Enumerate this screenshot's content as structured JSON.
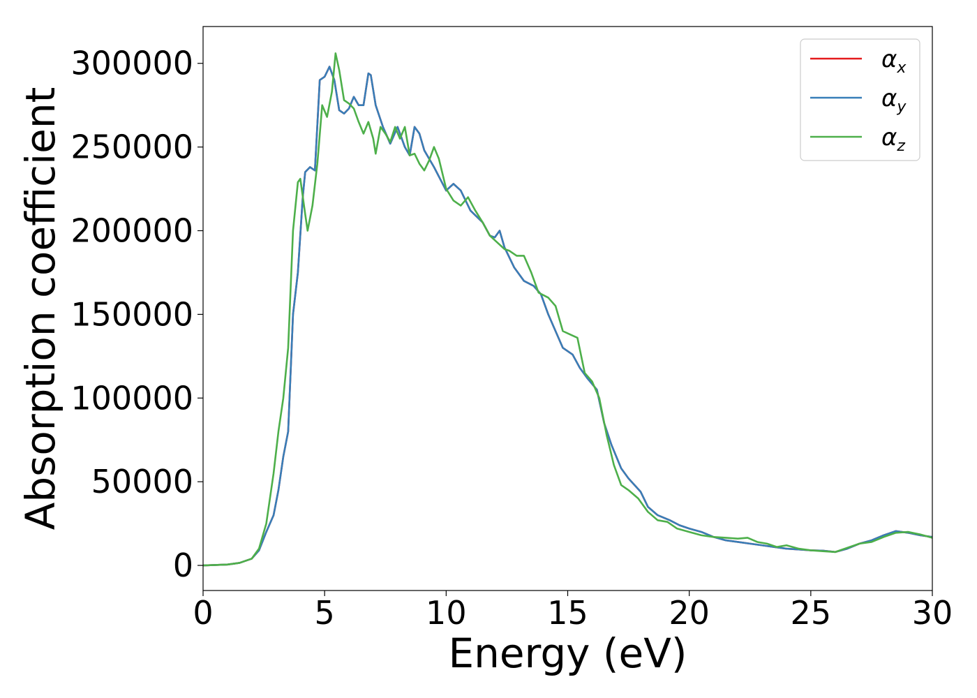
{
  "chart_data": {
    "type": "line",
    "xlabel": "Energy (eV)",
    "ylabel": "Absorption coefficient",
    "xlim": [
      0,
      30
    ],
    "ylim": [
      -15000,
      322000
    ],
    "xticks": [
      0,
      5,
      10,
      15,
      20,
      25,
      30
    ],
    "xtick_labels": [
      "0",
      "5",
      "10",
      "15",
      "20",
      "25",
      "30"
    ],
    "yticks": [
      0,
      50000,
      100000,
      150000,
      200000,
      250000,
      300000
    ],
    "ytick_labels": [
      "0",
      "50000",
      "100000",
      "150000",
      "200000",
      "250000",
      "300000"
    ],
    "grid": false,
    "legend_position": "top-right",
    "series": [
      {
        "name": "α",
        "subscript": "x",
        "color": "#e41a1c",
        "points": [
          [
            0,
            0
          ],
          [
            1,
            500
          ],
          [
            1.5,
            1500
          ],
          [
            2,
            4000
          ],
          [
            2.3,
            9000
          ],
          [
            2.6,
            20000
          ],
          [
            2.9,
            30000
          ],
          [
            3.1,
            45000
          ],
          [
            3.3,
            65000
          ],
          [
            3.5,
            80000
          ],
          [
            3.7,
            150000
          ],
          [
            3.9,
            175000
          ],
          [
            4.1,
            220000
          ],
          [
            4.2,
            235000
          ],
          [
            4.4,
            238000
          ],
          [
            4.6,
            236000
          ],
          [
            4.8,
            290000
          ],
          [
            5.0,
            292000
          ],
          [
            5.2,
            298000
          ],
          [
            5.4,
            290000
          ],
          [
            5.6,
            272000
          ],
          [
            5.8,
            270000
          ],
          [
            6.0,
            273000
          ],
          [
            6.2,
            280000
          ],
          [
            6.4,
            275000
          ],
          [
            6.6,
            275000
          ],
          [
            6.8,
            294000
          ],
          [
            6.9,
            293000
          ],
          [
            7.1,
            275000
          ],
          [
            7.4,
            262000
          ],
          [
            7.7,
            252000
          ],
          [
            8.0,
            262000
          ],
          [
            8.3,
            250000
          ],
          [
            8.5,
            245000
          ],
          [
            8.7,
            262000
          ],
          [
            8.9,
            258000
          ],
          [
            9.1,
            248000
          ],
          [
            9.5,
            238000
          ],
          [
            10.0,
            224000
          ],
          [
            10.3,
            228000
          ],
          [
            10.6,
            224000
          ],
          [
            11.0,
            212000
          ],
          [
            11.5,
            205000
          ],
          [
            11.8,
            197000
          ],
          [
            12.0,
            196000
          ],
          [
            12.2,
            200000
          ],
          [
            12.4,
            190000
          ],
          [
            12.8,
            178000
          ],
          [
            13.2,
            170000
          ],
          [
            13.6,
            167000
          ],
          [
            13.9,
            162000
          ],
          [
            14.2,
            150000
          ],
          [
            14.5,
            140000
          ],
          [
            14.8,
            130000
          ],
          [
            15.2,
            126000
          ],
          [
            15.5,
            118000
          ],
          [
            15.8,
            112000
          ],
          [
            16.2,
            105000
          ],
          [
            16.5,
            85000
          ],
          [
            16.8,
            72000
          ],
          [
            17.2,
            58000
          ],
          [
            17.5,
            52000
          ],
          [
            18.0,
            44000
          ],
          [
            18.3,
            35000
          ],
          [
            18.7,
            30000
          ],
          [
            19.2,
            27000
          ],
          [
            19.6,
            24000
          ],
          [
            20.0,
            22000
          ],
          [
            20.5,
            20000
          ],
          [
            21.0,
            17000
          ],
          [
            21.5,
            15000
          ],
          [
            22.0,
            14000
          ],
          [
            22.5,
            13000
          ],
          [
            23.0,
            12000
          ],
          [
            23.5,
            11000
          ],
          [
            24.0,
            10000
          ],
          [
            24.5,
            9500
          ],
          [
            25.0,
            9000
          ],
          [
            25.5,
            8800
          ],
          [
            26.0,
            8000
          ],
          [
            26.5,
            10000
          ],
          [
            27.0,
            13000
          ],
          [
            27.5,
            15000
          ],
          [
            28.0,
            18000
          ],
          [
            28.5,
            20500
          ],
          [
            29.0,
            19500
          ],
          [
            29.5,
            18000
          ],
          [
            30.0,
            17000
          ]
        ]
      },
      {
        "name": "α",
        "subscript": "y",
        "color": "#377eb8",
        "points": [
          [
            0,
            0
          ],
          [
            1,
            500
          ],
          [
            1.5,
            1500
          ],
          [
            2,
            4000
          ],
          [
            2.3,
            9000
          ],
          [
            2.6,
            20000
          ],
          [
            2.9,
            30000
          ],
          [
            3.1,
            45000
          ],
          [
            3.3,
            65000
          ],
          [
            3.5,
            80000
          ],
          [
            3.7,
            150000
          ],
          [
            3.9,
            175000
          ],
          [
            4.1,
            220000
          ],
          [
            4.2,
            235000
          ],
          [
            4.4,
            238000
          ],
          [
            4.6,
            236000
          ],
          [
            4.8,
            290000
          ],
          [
            5.0,
            292000
          ],
          [
            5.2,
            298000
          ],
          [
            5.4,
            290000
          ],
          [
            5.6,
            272000
          ],
          [
            5.8,
            270000
          ],
          [
            6.0,
            273000
          ],
          [
            6.2,
            280000
          ],
          [
            6.4,
            275000
          ],
          [
            6.6,
            275000
          ],
          [
            6.8,
            294000
          ],
          [
            6.9,
            293000
          ],
          [
            7.1,
            275000
          ],
          [
            7.4,
            262000
          ],
          [
            7.7,
            252000
          ],
          [
            8.0,
            262000
          ],
          [
            8.3,
            250000
          ],
          [
            8.5,
            245000
          ],
          [
            8.7,
            262000
          ],
          [
            8.9,
            258000
          ],
          [
            9.1,
            248000
          ],
          [
            9.5,
            238000
          ],
          [
            10.0,
            224000
          ],
          [
            10.3,
            228000
          ],
          [
            10.6,
            224000
          ],
          [
            11.0,
            212000
          ],
          [
            11.5,
            205000
          ],
          [
            11.8,
            197000
          ],
          [
            12.0,
            196000
          ],
          [
            12.2,
            200000
          ],
          [
            12.4,
            190000
          ],
          [
            12.8,
            178000
          ],
          [
            13.2,
            170000
          ],
          [
            13.6,
            167000
          ],
          [
            13.9,
            162000
          ],
          [
            14.2,
            150000
          ],
          [
            14.5,
            140000
          ],
          [
            14.8,
            130000
          ],
          [
            15.2,
            126000
          ],
          [
            15.5,
            118000
          ],
          [
            15.8,
            112000
          ],
          [
            16.2,
            105000
          ],
          [
            16.5,
            85000
          ],
          [
            16.8,
            72000
          ],
          [
            17.2,
            58000
          ],
          [
            17.5,
            52000
          ],
          [
            18.0,
            44000
          ],
          [
            18.3,
            35000
          ],
          [
            18.7,
            30000
          ],
          [
            19.2,
            27000
          ],
          [
            19.6,
            24000
          ],
          [
            20.0,
            22000
          ],
          [
            20.5,
            20000
          ],
          [
            21.0,
            17000
          ],
          [
            21.5,
            15000
          ],
          [
            22.0,
            14000
          ],
          [
            22.5,
            13000
          ],
          [
            23.0,
            12000
          ],
          [
            23.5,
            11000
          ],
          [
            24.0,
            10000
          ],
          [
            24.5,
            9500
          ],
          [
            25.0,
            9000
          ],
          [
            25.5,
            8800
          ],
          [
            26.0,
            8000
          ],
          [
            26.5,
            10000
          ],
          [
            27.0,
            13000
          ],
          [
            27.5,
            15000
          ],
          [
            28.0,
            18000
          ],
          [
            28.5,
            20500
          ],
          [
            29.0,
            19500
          ],
          [
            29.5,
            18000
          ],
          [
            30.0,
            17000
          ]
        ]
      },
      {
        "name": "α",
        "subscript": "z",
        "color": "#4daf4a",
        "points": [
          [
            0,
            0
          ],
          [
            1,
            500
          ],
          [
            1.5,
            1500
          ],
          [
            2,
            4000
          ],
          [
            2.3,
            10000
          ],
          [
            2.6,
            25000
          ],
          [
            2.9,
            55000
          ],
          [
            3.1,
            80000
          ],
          [
            3.3,
            100000
          ],
          [
            3.5,
            130000
          ],
          [
            3.7,
            200000
          ],
          [
            3.9,
            229000
          ],
          [
            4.0,
            231000
          ],
          [
            4.2,
            210000
          ],
          [
            4.3,
            200000
          ],
          [
            4.5,
            215000
          ],
          [
            4.7,
            240000
          ],
          [
            4.9,
            275000
          ],
          [
            5.1,
            268000
          ],
          [
            5.3,
            283000
          ],
          [
            5.45,
            306000
          ],
          [
            5.6,
            296000
          ],
          [
            5.8,
            278000
          ],
          [
            6.0,
            276000
          ],
          [
            6.2,
            273000
          ],
          [
            6.4,
            265000
          ],
          [
            6.6,
            258000
          ],
          [
            6.8,
            265000
          ],
          [
            7.0,
            255000
          ],
          [
            7.1,
            246000
          ],
          [
            7.3,
            262000
          ],
          [
            7.5,
            258000
          ],
          [
            7.7,
            253000
          ],
          [
            7.9,
            262000
          ],
          [
            8.1,
            255000
          ],
          [
            8.3,
            262000
          ],
          [
            8.5,
            245000
          ],
          [
            8.7,
            246000
          ],
          [
            8.9,
            240000
          ],
          [
            9.1,
            236000
          ],
          [
            9.3,
            242000
          ],
          [
            9.5,
            250000
          ],
          [
            9.7,
            243000
          ],
          [
            10.0,
            225000
          ],
          [
            10.3,
            218000
          ],
          [
            10.6,
            215000
          ],
          [
            10.9,
            220000
          ],
          [
            11.2,
            212000
          ],
          [
            11.5,
            205000
          ],
          [
            11.8,
            197000
          ],
          [
            12.1,
            193000
          ],
          [
            12.4,
            189000
          ],
          [
            12.6,
            188000
          ],
          [
            12.9,
            185000
          ],
          [
            13.2,
            185000
          ],
          [
            13.5,
            175000
          ],
          [
            13.8,
            163000
          ],
          [
            14.2,
            160000
          ],
          [
            14.5,
            155000
          ],
          [
            14.8,
            140000
          ],
          [
            15.1,
            138000
          ],
          [
            15.4,
            136000
          ],
          [
            15.7,
            115000
          ],
          [
            16.0,
            110000
          ],
          [
            16.3,
            100000
          ],
          [
            16.6,
            78000
          ],
          [
            16.9,
            60000
          ],
          [
            17.2,
            48000
          ],
          [
            17.5,
            45000
          ],
          [
            17.9,
            40000
          ],
          [
            18.3,
            32000
          ],
          [
            18.7,
            27000
          ],
          [
            19.1,
            26000
          ],
          [
            19.5,
            22000
          ],
          [
            20.0,
            20000
          ],
          [
            20.5,
            18000
          ],
          [
            21.0,
            17000
          ],
          [
            21.5,
            16500
          ],
          [
            22.0,
            16000
          ],
          [
            22.4,
            16500
          ],
          [
            22.8,
            14000
          ],
          [
            23.2,
            13000
          ],
          [
            23.6,
            11000
          ],
          [
            24.0,
            12000
          ],
          [
            24.5,
            10000
          ],
          [
            25.0,
            9000
          ],
          [
            25.5,
            8500
          ],
          [
            26.0,
            8000
          ],
          [
            26.5,
            10500
          ],
          [
            27.0,
            13000
          ],
          [
            27.5,
            14000
          ],
          [
            28.0,
            17000
          ],
          [
            28.5,
            19500
          ],
          [
            29.0,
            20000
          ],
          [
            29.5,
            18500
          ],
          [
            30.0,
            16500
          ]
        ]
      }
    ]
  }
}
